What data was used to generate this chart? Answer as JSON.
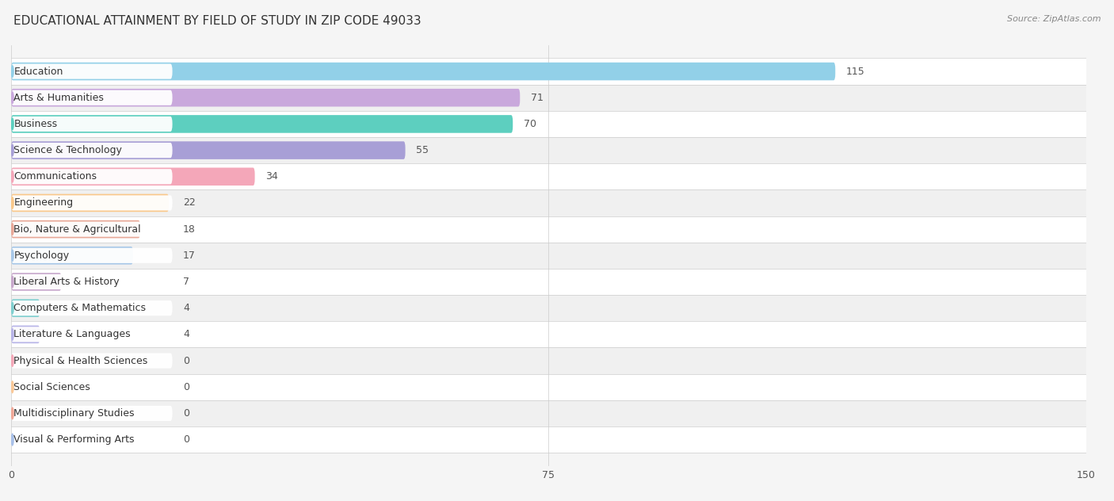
{
  "title": "EDUCATIONAL ATTAINMENT BY FIELD OF STUDY IN ZIP CODE 49033",
  "source": "Source: ZipAtlas.com",
  "categories": [
    "Education",
    "Arts & Humanities",
    "Business",
    "Science & Technology",
    "Communications",
    "Engineering",
    "Bio, Nature & Agricultural",
    "Psychology",
    "Liberal Arts & History",
    "Computers & Mathematics",
    "Literature & Languages",
    "Physical & Health Sciences",
    "Social Sciences",
    "Multidisciplinary Studies",
    "Visual & Performing Arts"
  ],
  "values": [
    115,
    71,
    70,
    55,
    34,
    22,
    18,
    17,
    7,
    4,
    4,
    0,
    0,
    0,
    0
  ],
  "bar_colors": [
    "#92D0E8",
    "#C9A8DC",
    "#5DCFBF",
    "#A89FD6",
    "#F4A7B9",
    "#F9C88A",
    "#E8A898",
    "#A8C8E8",
    "#C8A8CC",
    "#80CFCF",
    "#B8B4E8",
    "#F4A8B8",
    "#F9C898",
    "#F0A898",
    "#A8C0E8"
  ],
  "label_pill_colors": [
    "#92D0E8",
    "#C9A8DC",
    "#5DCFBF",
    "#A89FD6",
    "#F4A7B9",
    "#F9C88A",
    "#E8A898",
    "#A8C8E8",
    "#C8A8CC",
    "#80CFCF",
    "#B8B4E8",
    "#F4A8B8",
    "#F9C898",
    "#F0A898",
    "#A8C0E8"
  ],
  "xlim": [
    0,
    150
  ],
  "xticks": [
    0,
    75,
    150
  ],
  "background_color": "#f5f5f5",
  "row_bg_colors": [
    "#ffffff",
    "#f0f0f0"
  ],
  "title_fontsize": 11,
  "label_fontsize": 9,
  "value_fontsize": 9,
  "min_bar_width": 25
}
